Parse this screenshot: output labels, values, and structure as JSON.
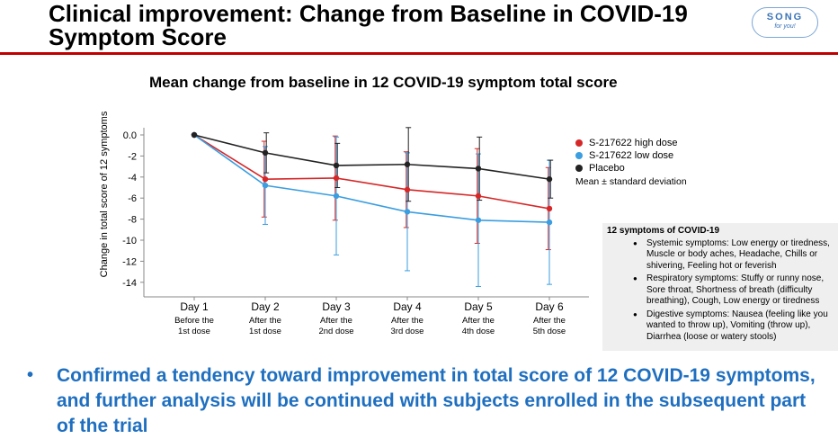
{
  "header": {
    "title": "Clinical improvement: Change from Baseline in COVID-19 Symptom Score",
    "logo_text": "SONG",
    "logo_subtext": "for you!",
    "accent_color": "#c00000"
  },
  "legend_note": "Mean ± standard deviation",
  "symptoms_box": {
    "title": "12 symptoms of COVID-19",
    "items": [
      "Systemic symptoms: Low energy or tiredness, Muscle or body aches, Headache, Chills or shivering, Feeling hot or feverish",
      "Respiratory symptoms: Stuffy or runny nose, Sore throat, Shortness of breath (difficulty breathing), Cough, Low energy or tiredness",
      "Digestive symptoms:  Nausea (feeling like you wanted to throw up), Vomiting (throw up), Diarrhea (loose or watery stools)"
    ]
  },
  "conclusion": {
    "bullet": "•",
    "text": "Confirmed a tendency toward improvement in total score of 12 COVID-19 symptoms, and further analysis will be continued with subjects enrolled in the subsequent part of the trial",
    "color": "#1f6fc0"
  },
  "chart_data": {
    "type": "line",
    "title": "Mean change from baseline in 12 COVID-19 symptom total score",
    "ylabel": "Change in total score of 12 symptoms",
    "xlabel": "",
    "ylim": [
      -15,
      1
    ],
    "yticks": [
      0,
      -2,
      -4,
      -6,
      -8,
      -10,
      -12,
      -14
    ],
    "ytick_labels": [
      "0.0",
      "-2",
      "-4",
      "-6",
      "-8",
      "-10",
      "-12",
      "-14"
    ],
    "categories": [
      "Day 1",
      "Day 2",
      "Day 3",
      "Day 4",
      "Day 5",
      "Day 6"
    ],
    "subcategories": [
      [
        "Before the",
        "1st dose"
      ],
      [
        "After the",
        "1st dose"
      ],
      [
        "After the",
        "2nd dose"
      ],
      [
        "After the",
        "3rd dose"
      ],
      [
        "After the",
        "4th dose"
      ],
      [
        "After the",
        "5th dose"
      ]
    ],
    "legend_position": "right",
    "series": [
      {
        "name": "S-217622 high dose",
        "color": "#d62728",
        "values": [
          0,
          -4.2,
          -4.1,
          -5.2,
          -5.8,
          -7.0
        ],
        "sd": [
          0,
          3.6,
          4.0,
          3.6,
          4.5,
          3.9
        ]
      },
      {
        "name": "S-217622 low dose",
        "color": "#3a9ee0",
        "values": [
          0,
          -4.8,
          -5.8,
          -7.3,
          -8.1,
          -8.3
        ],
        "sd": [
          0,
          3.7,
          5.6,
          5.6,
          6.3,
          5.9
        ]
      },
      {
        "name": "Placebo",
        "color": "#222222",
        "values": [
          0,
          -1.7,
          -2.9,
          -2.8,
          -3.2,
          -4.2
        ],
        "sd": [
          0,
          1.9,
          2.1,
          3.5,
          3.0,
          1.8
        ]
      }
    ]
  }
}
